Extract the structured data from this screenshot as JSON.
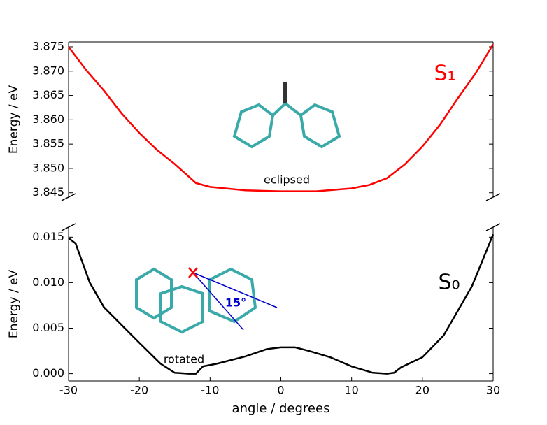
{
  "chart_data": [
    {
      "type": "line",
      "ylabel": "Energy / eV",
      "xlim": [
        -30,
        30
      ],
      "ylim": [
        3.8441,
        3.876
      ],
      "yticks": [
        3.845,
        {
          "value": 3.85,
          "label": "3.850"
        },
        3.855,
        {
          "value": 3.86,
          "label": "3.860"
        },
        3.865,
        {
          "value": 3.87,
          "label": "3.870"
        },
        3.875
      ],
      "x": [
        -30,
        -27.5,
        -25,
        -22.5,
        -20,
        -17.5,
        -15,
        -12,
        -10,
        -5,
        0,
        5,
        10,
        12.5,
        15,
        17.5,
        20,
        22.5,
        25,
        27.5,
        30
      ],
      "series": [
        {
          "name": "S₁",
          "color": "#ff0000",
          "values": [
            3.875,
            3.8702,
            3.866,
            3.8613,
            3.8573,
            3.8538,
            3.8509,
            3.847,
            3.8462,
            3.8455,
            3.8453,
            3.8453,
            3.8459,
            3.8466,
            3.848,
            3.8508,
            3.8545,
            3.859,
            3.8644,
            3.8695,
            3.8755
          ]
        }
      ],
      "annotations": [
        "S₁",
        "eclipsed"
      ]
    },
    {
      "type": "line",
      "ylabel": "Energy / eV",
      "xlabel": "angle / degrees",
      "xlim": [
        -30,
        30
      ],
      "ylim": [
        -0.0008,
        0.0161
      ],
      "xticks": [
        -30,
        -20,
        -10,
        0,
        10,
        20,
        30
      ],
      "yticks": [
        {
          "value": 0,
          "label": "0.000"
        },
        0.005,
        {
          "value": 0.01,
          "label": "0.010"
        },
        0.015
      ],
      "x": [
        -30,
        -29,
        -27,
        -25,
        -20,
        -17,
        -15,
        -13,
        -12,
        -11,
        -9,
        -5,
        -2,
        0,
        2,
        4,
        7,
        10,
        13,
        15,
        16,
        17,
        20,
        23,
        25,
        27,
        30
      ],
      "series": [
        {
          "name": "S₀",
          "color": "#000000",
          "values": [
            0.0149,
            0.0143,
            0.01,
            0.0073,
            0.0034,
            0.0011,
            0.0001,
            0,
            0,
            0.0008,
            0.0011,
            0.0019,
            0.0027,
            0.0029,
            0.0029,
            0.0025,
            0.0018,
            0.0008,
            0.0001,
            0,
            0.0001,
            0.0007,
            0.0018,
            0.0042,
            0.0069,
            0.0096,
            0.0153
          ]
        }
      ],
      "annotations": [
        "S₀",
        "rotated",
        "15°"
      ]
    }
  ]
}
